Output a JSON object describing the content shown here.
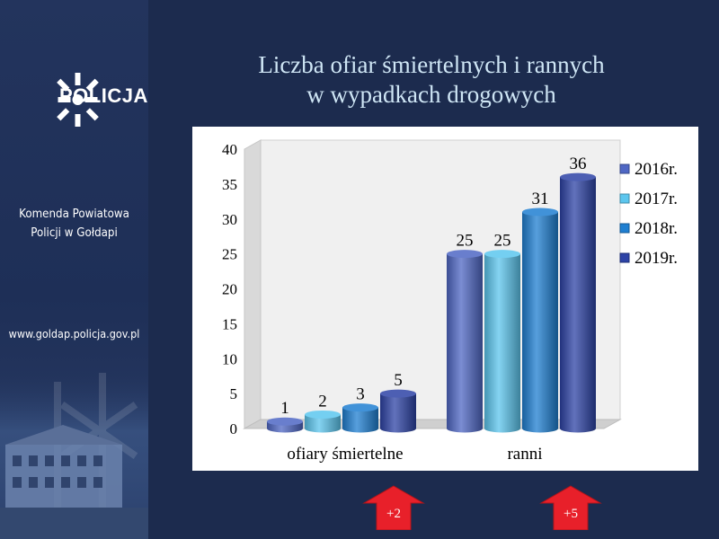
{
  "sidebar": {
    "logo_text": "POLICJA",
    "unit_line1": "Komenda Powiatowa",
    "unit_line2": "Policji w Gołdapi",
    "website": "www.goldap.policja.gov.pl"
  },
  "slide": {
    "title_line1": "Liczba ofiar śmiertelnych i rannych",
    "title_line2": "w wypadkach drogowych"
  },
  "chart_data": {
    "type": "bar",
    "categories": [
      "ofiary śmiertelne",
      "ranni"
    ],
    "series": [
      {
        "name": "2016r.",
        "values": [
          1,
          25
        ],
        "color": "#4f67c4"
      },
      {
        "name": "2017r.",
        "values": [
          2,
          25
        ],
        "color": "#5cc6ee"
      },
      {
        "name": "2018r.",
        "values": [
          3,
          31
        ],
        "color": "#1f7fd1"
      },
      {
        "name": "2019r.",
        "values": [
          5,
          36
        ],
        "color": "#2d43a6"
      }
    ],
    "ylim": [
      0,
      40
    ],
    "yticks": [
      0,
      5,
      10,
      15,
      20,
      25,
      30,
      35,
      40
    ],
    "legend": "right",
    "style": "3d-cylinder",
    "data_labels": true
  },
  "annotations": {
    "change_deaths": "+2",
    "change_injured": "+5",
    "arrow_color": "#e8202a"
  }
}
